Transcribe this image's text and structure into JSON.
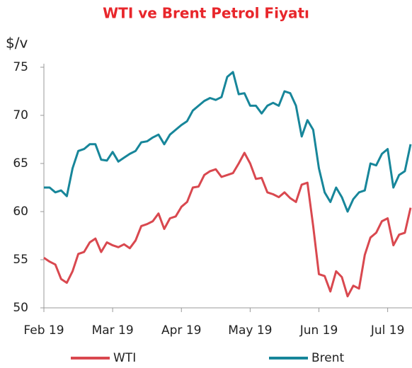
{
  "chart_data": {
    "type": "line",
    "title": "WTI ve Brent Petrol Fiyatı",
    "y_label": "$/v",
    "categories": [
      "Feb 19",
      null,
      null,
      null,
      null,
      null,
      null,
      null,
      null,
      null,
      null,
      null,
      "Mar 19",
      null,
      null,
      null,
      null,
      null,
      null,
      null,
      null,
      null,
      null,
      null,
      "Apr 19",
      null,
      null,
      null,
      null,
      null,
      null,
      null,
      null,
      null,
      null,
      null,
      "May 19",
      null,
      null,
      null,
      null,
      null,
      null,
      null,
      null,
      null,
      null,
      null,
      "Jun 19",
      null,
      null,
      null,
      null,
      null,
      null,
      null,
      null,
      null,
      null,
      null,
      "Jul 19",
      null,
      null,
      null,
      null
    ],
    "series": [
      {
        "name": "WTI",
        "color": "#d9484f",
        "values": [
          55.2,
          54.8,
          54.5,
          53.0,
          52.6,
          53.8,
          55.6,
          55.8,
          56.8,
          57.2,
          55.8,
          56.8,
          56.5,
          56.3,
          56.6,
          56.2,
          57.0,
          58.5,
          58.7,
          59.0,
          59.8,
          58.2,
          59.3,
          59.5,
          60.5,
          61.0,
          62.5,
          62.6,
          63.8,
          64.2,
          64.4,
          63.6,
          63.8,
          64.0,
          65.0,
          66.1,
          65.0,
          63.4,
          63.5,
          62.0,
          61.8,
          61.5,
          62.0,
          61.4,
          61.0,
          62.8,
          63.0,
          58.5,
          53.5,
          53.3,
          51.7,
          53.8,
          53.2,
          51.2,
          52.3,
          52.0,
          55.5,
          57.3,
          57.8,
          59.0,
          59.3,
          56.5,
          57.6,
          57.8,
          60.4
        ]
      },
      {
        "name": "Brent",
        "color": "#17869a",
        "values": [
          62.5,
          62.5,
          62.0,
          62.2,
          61.6,
          64.5,
          66.3,
          66.5,
          67.0,
          67.0,
          65.4,
          65.3,
          66.2,
          65.2,
          65.6,
          66.0,
          66.3,
          67.2,
          67.3,
          67.7,
          68.0,
          67.0,
          68.0,
          68.5,
          69.0,
          69.4,
          70.5,
          71.0,
          71.5,
          71.8,
          71.6,
          71.9,
          74.0,
          74.5,
          72.2,
          72.3,
          71.0,
          71.0,
          70.2,
          71.0,
          71.3,
          71.0,
          72.5,
          72.3,
          71.0,
          67.8,
          69.5,
          68.5,
          64.5,
          62.0,
          61.0,
          62.5,
          61.5,
          60.0,
          61.3,
          62.0,
          62.2,
          65.0,
          64.8,
          66.0,
          66.5,
          62.5,
          63.8,
          64.2,
          67.0
        ]
      }
    ],
    "ylim": [
      50,
      75
    ],
    "yticks": [
      50,
      55,
      60,
      65,
      70,
      75
    ],
    "grid": false,
    "legend": "bottom"
  }
}
